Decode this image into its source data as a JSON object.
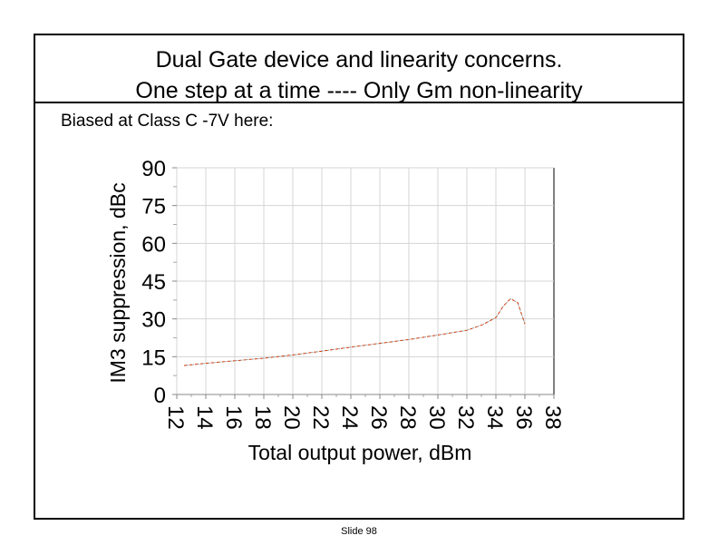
{
  "slide": {
    "title_line1": "Dual Gate device and linearity concerns.",
    "title_line2": "One step at a time ----   Only Gm non-linearity",
    "subtitle": "Biased at Class C -7V here:",
    "slide_number": "Slide 98"
  },
  "chart_data": {
    "type": "line",
    "title": "",
    "xlabel": "Total output power, dBm",
    "ylabel": "IM3 suppression, dBc",
    "xlim": [
      12,
      38
    ],
    "ylim": [
      0,
      90
    ],
    "x_ticks": [
      12,
      14,
      16,
      18,
      20,
      22,
      24,
      26,
      28,
      30,
      32,
      34,
      36,
      38
    ],
    "y_ticks": [
      0,
      15,
      30,
      45,
      60,
      75,
      90
    ],
    "grid": true,
    "legend": "none",
    "series": [
      {
        "color": "#cc3300",
        "x": [
          12.5,
          14,
          16,
          18,
          20,
          22,
          24,
          26,
          28,
          30,
          32,
          33,
          34,
          34.5,
          35,
          35.5,
          36
        ],
        "values": [
          11.5,
          12.4,
          13.4,
          14.4,
          15.7,
          17.2,
          18.8,
          20.3,
          21.8,
          23.6,
          25.5,
          27.5,
          30.5,
          35,
          38,
          36.5,
          28
        ]
      }
    ]
  }
}
